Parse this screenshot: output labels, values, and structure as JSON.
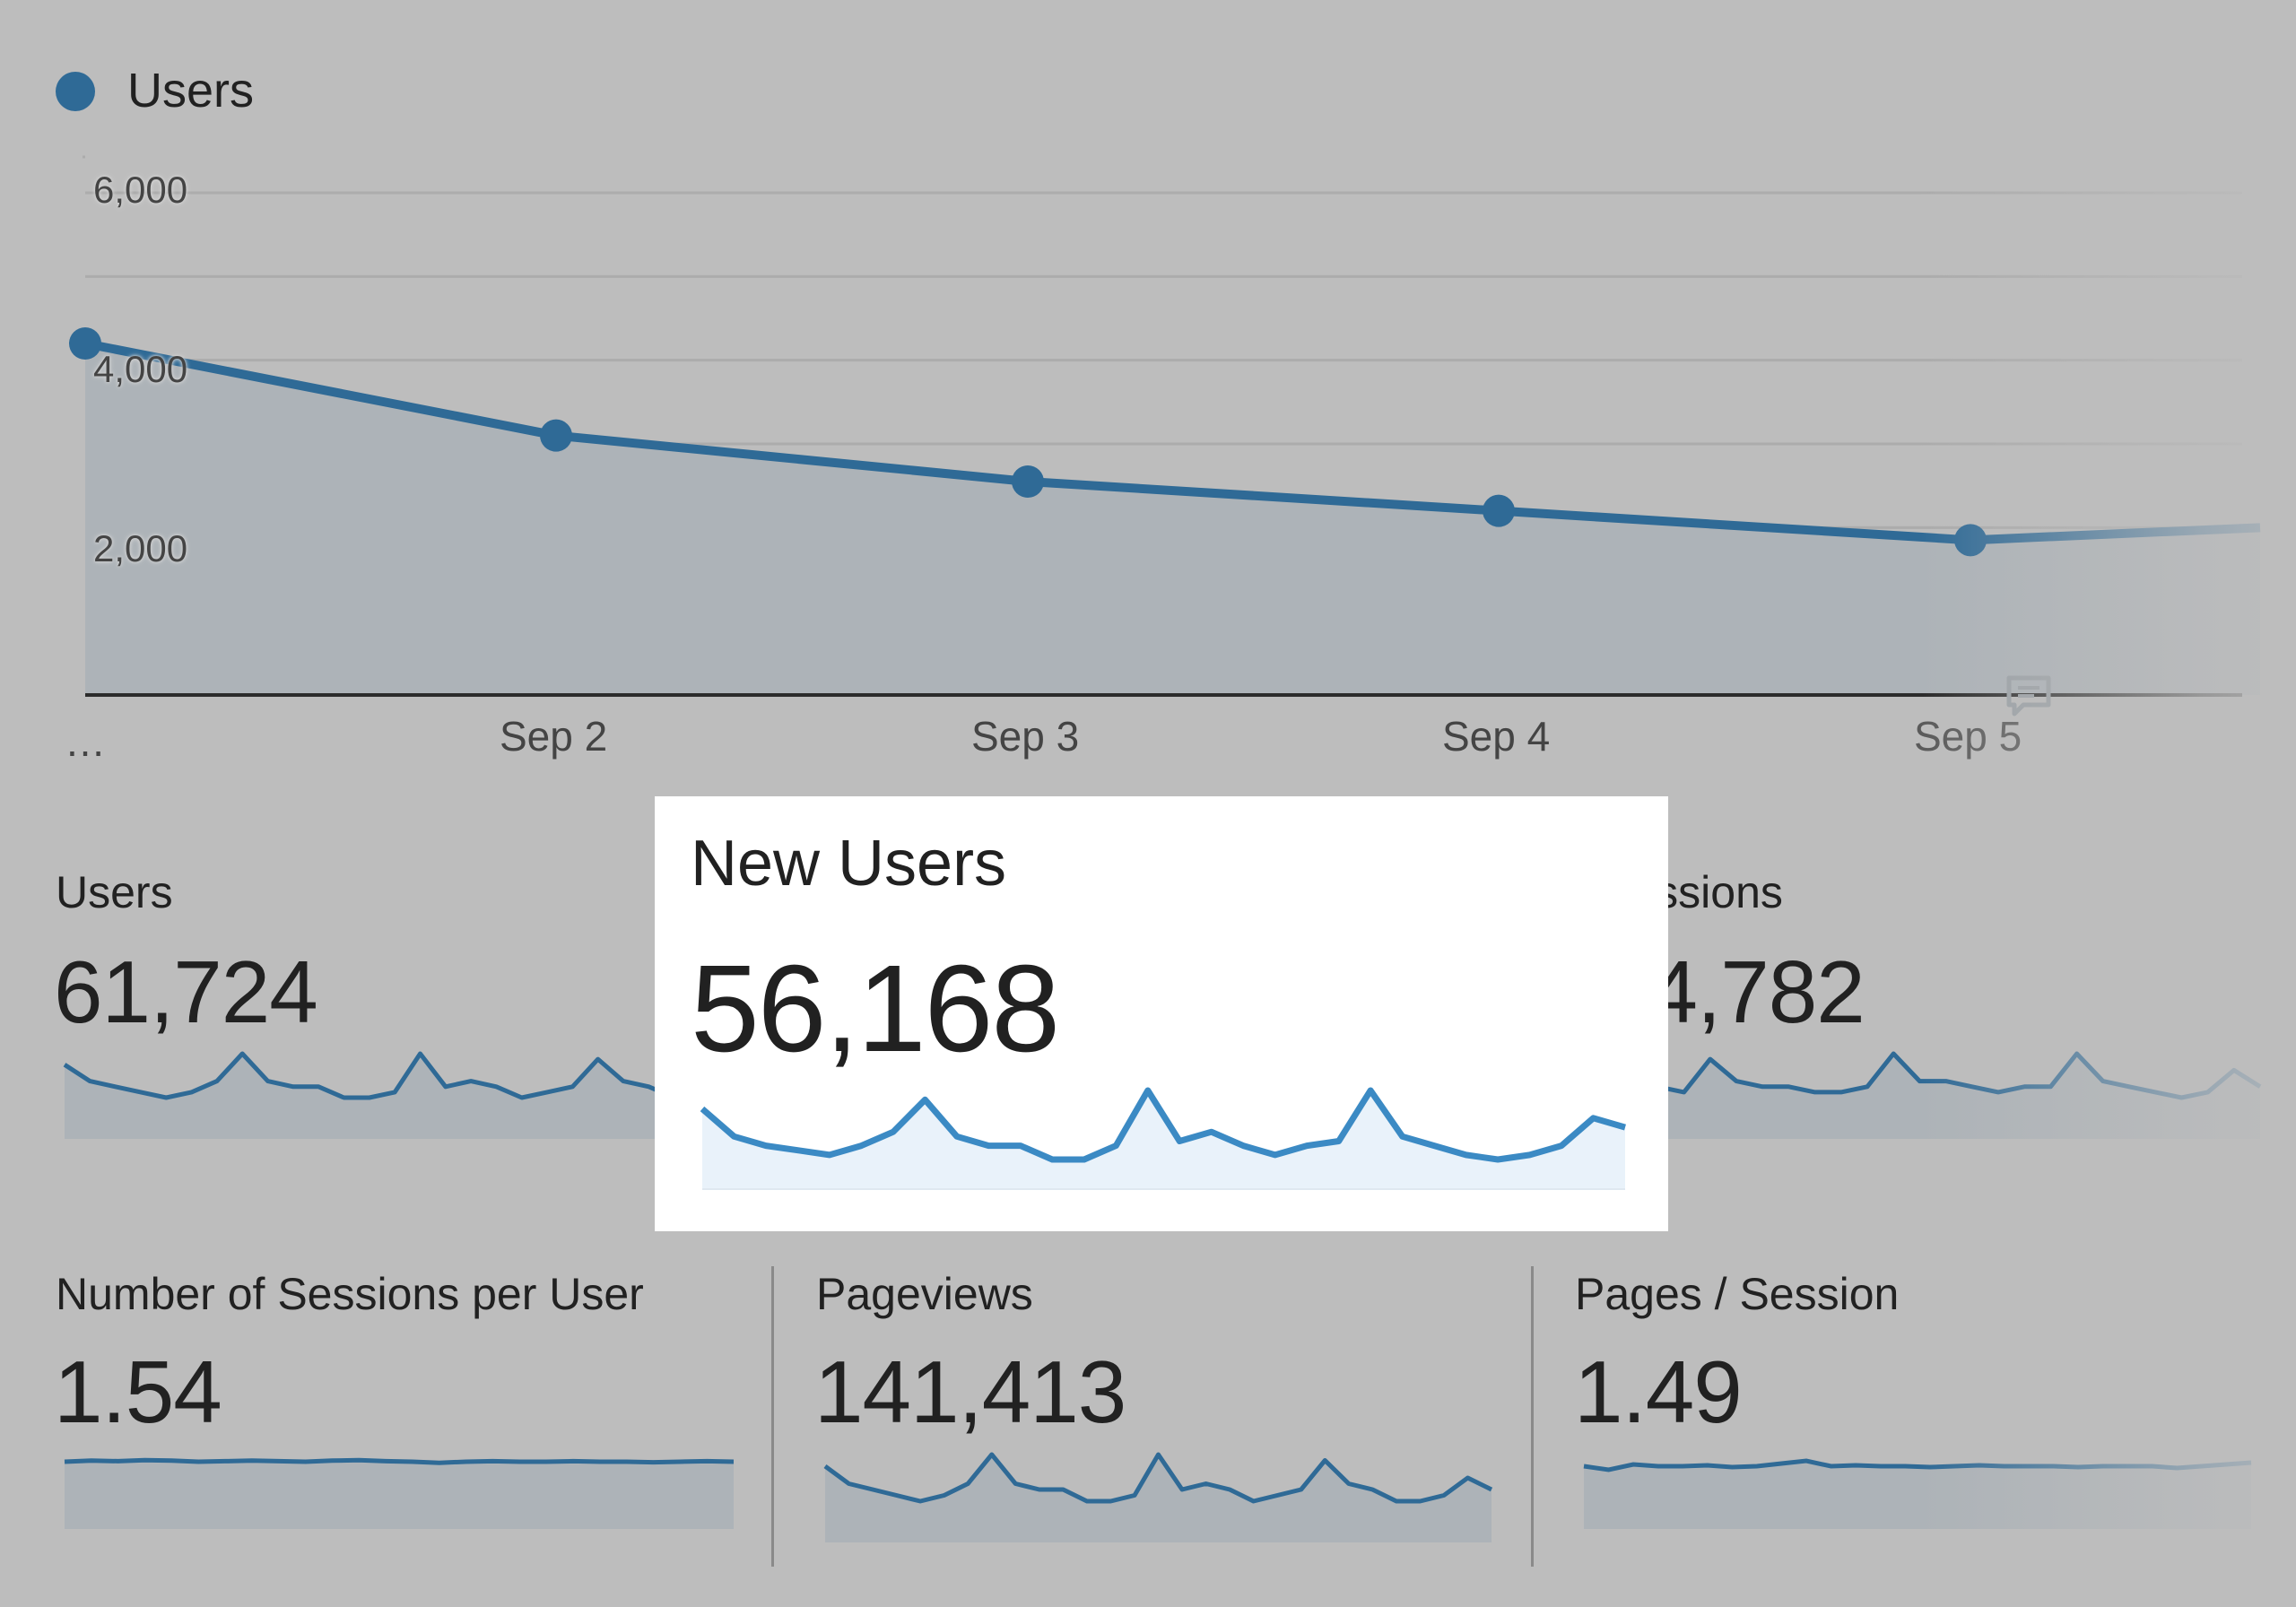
{
  "legend": {
    "label": "Users",
    "color": "#2f6a96"
  },
  "main_chart": {
    "chart_data": {
      "type": "area",
      "series_name": "Users",
      "x": [
        "…",
        "Sep 2",
        "Sep 3",
        "Sep 4",
        "Sep 5"
      ],
      "values": [
        4200,
        3100,
        2550,
        2200,
        1850
      ],
      "y_ticks": [
        "6,000",
        "4,000",
        "2,000"
      ],
      "y_tick_values": [
        6000,
        4000,
        2000
      ],
      "ylim": [
        0,
        6000
      ],
      "continues_right_value": 2000,
      "grid": true
    }
  },
  "metrics": [
    {
      "name": "Users",
      "value": "61,724",
      "spark": [
        8,
        5,
        4,
        3,
        2,
        3,
        5,
        10,
        5,
        4,
        4,
        2,
        2,
        3,
        10,
        4,
        5,
        4,
        2,
        3,
        4,
        9,
        5,
        4,
        2,
        3
      ]
    },
    {
      "name": "Sessions",
      "value": "94,782",
      "spark": [
        5,
        4,
        4,
        3,
        9,
        5,
        4,
        4,
        3,
        3,
        4,
        10,
        5,
        5,
        4,
        3,
        4,
        4,
        10,
        5,
        4,
        3,
        2,
        3,
        7,
        4
      ]
    },
    {
      "name": "Number of Sessions per User",
      "value": "1.54",
      "spark": [
        5,
        5.2,
        5.1,
        5.3,
        5.2,
        5,
        5.1,
        5.2,
        5.1,
        5,
        5.2,
        5.3,
        5.1,
        5,
        4.8,
        5,
        5.1,
        5,
        5,
        5.1,
        5,
        5,
        4.9,
        5,
        5.1,
        5
      ]
    },
    {
      "name": "Pageviews",
      "value": "141,413",
      "spark": [
        8,
        5,
        4,
        3,
        2,
        3,
        5,
        10,
        5,
        4,
        4,
        2,
        2,
        3,
        10,
        4,
        5,
        4,
        2,
        3,
        4,
        9,
        5,
        4,
        2,
        2,
        3,
        6,
        4
      ]
    },
    {
      "name": "Pages / Session",
      "value": "1.49",
      "spark": [
        5,
        4.6,
        5.2,
        5,
        5,
        5.1,
        4.9,
        5,
        5.3,
        5.6,
        5,
        5.1,
        5,
        5,
        4.9,
        5,
        5.1,
        5,
        5,
        5,
        4.9,
        5,
        5,
        5,
        4.8,
        5,
        5.2,
        5.4
      ]
    }
  ],
  "highlight": {
    "name": "New Users",
    "value": "56,168",
    "spark": [
      8,
      5,
      4,
      3.5,
      3,
      4,
      5.5,
      9,
      5,
      4,
      4,
      2.5,
      2.5,
      4,
      10,
      4.5,
      5.5,
      4,
      3,
      4,
      4.5,
      10,
      5,
      4,
      3,
      2.5,
      3,
      4,
      7,
      6
    ]
  },
  "colors": {
    "background": "#bdbdbd",
    "line": "#2f6a96",
    "area": "#adb3b8",
    "highlight_line": "#3b8ac4",
    "highlight_fill": "#e9f2fa"
  },
  "annotation_icon": "comment-icon"
}
